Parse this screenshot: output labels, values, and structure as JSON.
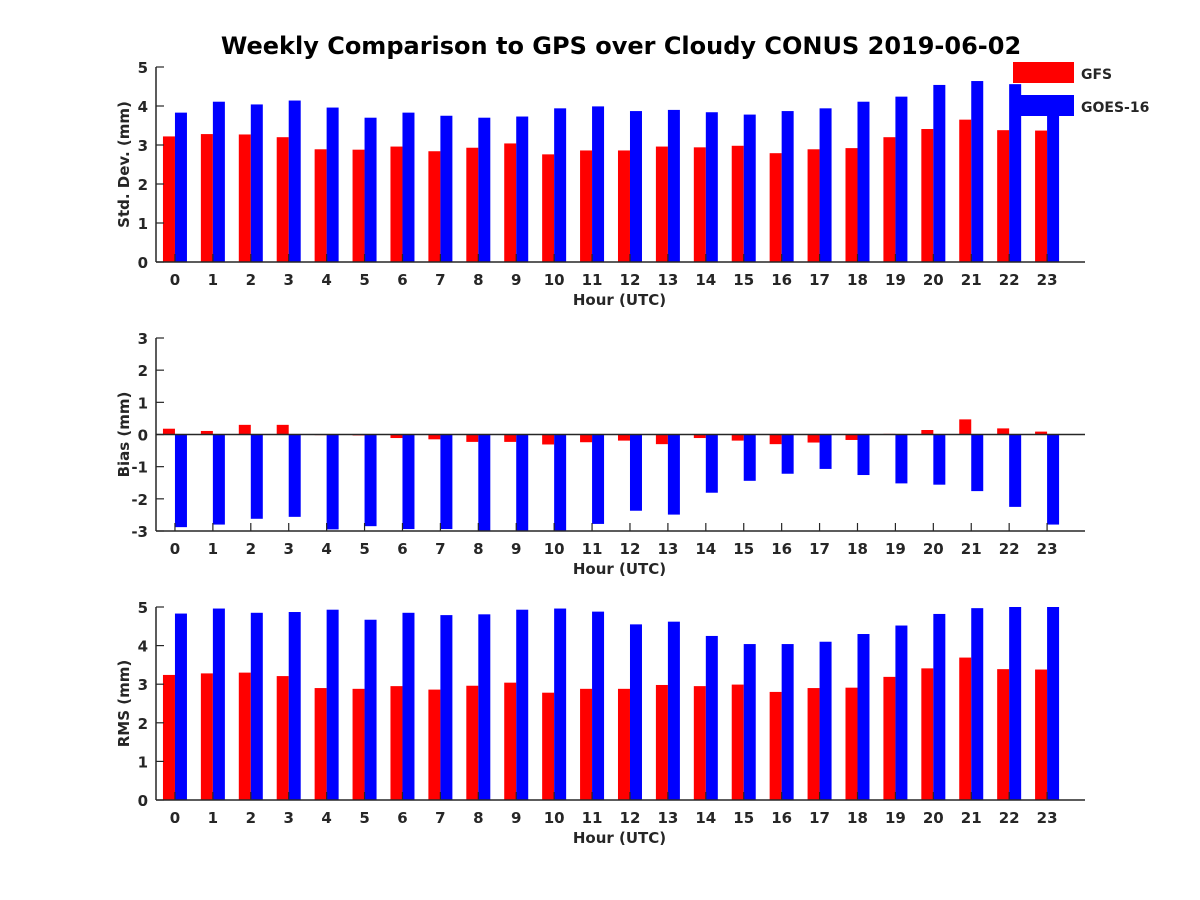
{
  "figure": {
    "title": "Weekly Comparison to GPS over Cloudy CONUS 2019-06-02"
  },
  "legend": {
    "placement": "top-right",
    "entries": [
      {
        "label": "GFS",
        "color": "#ff0000"
      },
      {
        "label": "GOES-16",
        "color": "#0000ff"
      }
    ]
  },
  "chart_data": [
    {
      "type": "bar",
      "xlabel": "Hour (UTC)",
      "ylabel": "Std. Dev. (mm)",
      "ylim": [
        0,
        5
      ],
      "yticks": [
        0,
        1,
        2,
        3,
        4,
        5
      ],
      "categories": [
        "0",
        "1",
        "2",
        "3",
        "4",
        "5",
        "6",
        "7",
        "8",
        "9",
        "10",
        "11",
        "12",
        "13",
        "14",
        "15",
        "16",
        "17",
        "18",
        "19",
        "20",
        "21",
        "22",
        "23"
      ],
      "series": [
        {
          "name": "GFS",
          "color": "#ff0000",
          "values": [
            3.22,
            3.28,
            3.27,
            3.2,
            2.89,
            2.88,
            2.96,
            2.84,
            2.93,
            3.04,
            2.76,
            2.86,
            2.86,
            2.96,
            2.94,
            2.98,
            2.79,
            2.89,
            2.92,
            3.2,
            3.41,
            3.65,
            3.38,
            3.37
          ]
        },
        {
          "name": "GOES-16",
          "color": "#0000ff",
          "values": [
            3.83,
            4.11,
            4.04,
            4.14,
            3.96,
            3.7,
            3.83,
            3.75,
            3.7,
            3.73,
            3.94,
            3.99,
            3.87,
            3.9,
            3.84,
            3.78,
            3.87,
            3.94,
            4.11,
            4.24,
            4.54,
            4.64,
            4.56,
            4.05
          ]
        }
      ]
    },
    {
      "type": "bar",
      "xlabel": "Hour (UTC)",
      "ylabel": "Bias (mm)",
      "ylim": [
        -3,
        3
      ],
      "yticks": [
        -3,
        -2,
        -1,
        0,
        1,
        2,
        3
      ],
      "categories": [
        "0",
        "1",
        "2",
        "3",
        "4",
        "5",
        "6",
        "7",
        "8",
        "9",
        "10",
        "11",
        "12",
        "13",
        "14",
        "15",
        "16",
        "17",
        "18",
        "19",
        "20",
        "21",
        "22",
        "23"
      ],
      "series": [
        {
          "name": "GFS",
          "color": "#ff0000",
          "values": [
            0.18,
            0.11,
            0.3,
            0.3,
            -0.02,
            -0.03,
            -0.11,
            -0.15,
            -0.23,
            -0.23,
            -0.31,
            -0.24,
            -0.19,
            -0.3,
            -0.11,
            -0.19,
            -0.3,
            -0.25,
            -0.17,
            0.02,
            0.14,
            0.47,
            0.19,
            0.09
          ]
        },
        {
          "name": "GOES-16",
          "color": "#0000ff",
          "values": [
            -2.88,
            -2.8,
            -2.62,
            -2.56,
            -2.95,
            -2.85,
            -2.94,
            -2.94,
            -3.0,
            -3.0,
            -3.0,
            -2.78,
            -2.37,
            -2.49,
            -1.81,
            -1.44,
            -1.22,
            -1.07,
            -1.26,
            -1.52,
            -1.56,
            -1.76,
            -2.25,
            -2.8
          ]
        }
      ]
    },
    {
      "type": "bar",
      "xlabel": "Hour (UTC)",
      "ylabel": "RMS (mm)",
      "ylim": [
        0,
        5
      ],
      "yticks": [
        0,
        1,
        2,
        3,
        4,
        5
      ],
      "categories": [
        "0",
        "1",
        "2",
        "3",
        "4",
        "5",
        "6",
        "7",
        "8",
        "9",
        "10",
        "11",
        "12",
        "13",
        "14",
        "15",
        "16",
        "17",
        "18",
        "19",
        "20",
        "21",
        "22",
        "23"
      ],
      "series": [
        {
          "name": "GFS",
          "color": "#ff0000",
          "values": [
            3.24,
            3.28,
            3.3,
            3.21,
            2.9,
            2.88,
            2.95,
            2.86,
            2.96,
            3.04,
            2.78,
            2.88,
            2.88,
            2.98,
            2.95,
            2.99,
            2.8,
            2.9,
            2.91,
            3.19,
            3.41,
            3.69,
            3.39,
            3.38
          ]
        },
        {
          "name": "GOES-16",
          "color": "#0000ff",
          "values": [
            4.83,
            4.96,
            4.85,
            4.87,
            4.93,
            4.67,
            4.85,
            4.79,
            4.81,
            4.93,
            4.96,
            4.88,
            4.55,
            4.62,
            4.25,
            4.04,
            4.04,
            4.1,
            4.3,
            4.52,
            4.82,
            4.97,
            5.0,
            5.0
          ]
        }
      ]
    }
  ]
}
